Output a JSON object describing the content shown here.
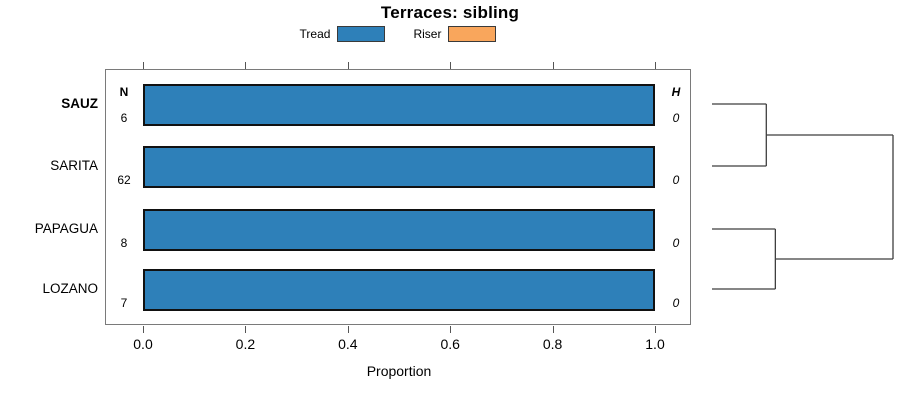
{
  "title": "Terraces: sibling",
  "legend": {
    "items": [
      {
        "label": "Tread",
        "color": "#2E80B9"
      },
      {
        "label": "Riser",
        "color": "#F9A65C"
      }
    ]
  },
  "chart_data": {
    "type": "bar",
    "orientation": "horizontal",
    "title": "Terraces: sibling",
    "xlabel": "Proportion",
    "xlim": [
      0.0,
      1.0
    ],
    "xticks": [
      0.0,
      0.2,
      0.4,
      0.6,
      0.8,
      1.0
    ],
    "xtick_labels": [
      "0.0",
      "0.2",
      "0.4",
      "0.6",
      "0.8",
      "1.0"
    ],
    "categories": [
      "SAUZ",
      "SARITA",
      "PAPAGUA",
      "LOZANO"
    ],
    "highlight_category": "SAUZ",
    "series": [
      {
        "name": "Tread",
        "color": "#2E80B9",
        "values": [
          1.0,
          1.0,
          1.0,
          1.0
        ]
      },
      {
        "name": "Riser",
        "color": "#F9A65C",
        "values": [
          0.0,
          0.0,
          0.0,
          0.0
        ]
      }
    ],
    "n_column": {
      "header": "N",
      "values": [
        "6",
        "62",
        "8",
        "7"
      ]
    },
    "h_column": {
      "header": "H",
      "values": [
        "0",
        "0",
        "0",
        "0"
      ]
    },
    "bar_fill": "#2E80B9",
    "bar_border": "#111111",
    "dendrogram": {
      "leaves": [
        "SAUZ",
        "SARITA",
        "PAPAGUA",
        "LOZANO"
      ],
      "merges": [
        {
          "children": [
            0,
            1
          ],
          "height": 0.3
        },
        {
          "children": [
            2,
            3
          ],
          "height": 0.35
        },
        {
          "children": [
            "m0",
            "m1"
          ],
          "height": 1.0
        }
      ]
    }
  }
}
